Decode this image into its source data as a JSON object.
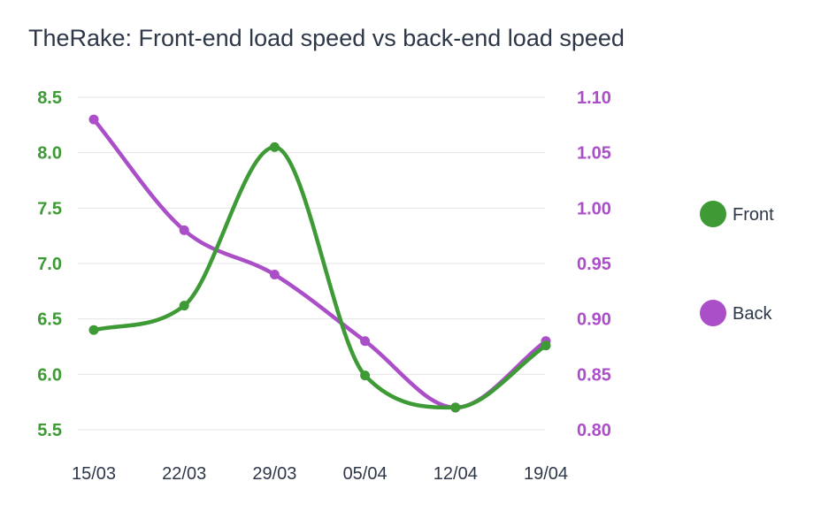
{
  "chart_data": {
    "type": "line",
    "title": "TheRake: Front-end load speed vs back-end load speed",
    "categories": [
      "15/03",
      "22/03",
      "29/03",
      "05/04",
      "12/04",
      "19/04"
    ],
    "series": [
      {
        "name": "Front",
        "axis": "left",
        "color": "#3d9a35",
        "values": [
          6.4,
          6.62,
          8.05,
          5.99,
          5.7,
          6.26
        ]
      },
      {
        "name": "Back",
        "axis": "right",
        "color": "#ab4fc9",
        "values": [
          1.08,
          0.98,
          0.94,
          0.88,
          0.82,
          0.88
        ]
      }
    ],
    "y_left": {
      "ticks": [
        "5.5",
        "6.0",
        "6.5",
        "7.0",
        "7.5",
        "8.0",
        "8.5"
      ],
      "range": [
        5.5,
        8.5
      ],
      "color": "#3d9a35"
    },
    "y_right": {
      "ticks": [
        "0.80",
        "0.85",
        "0.90",
        "0.95",
        "1.00",
        "1.05",
        "1.10"
      ],
      "range": [
        0.8,
        1.1
      ],
      "color": "#ab4fc9"
    },
    "grid": true,
    "legend_position": "right",
    "smooth": true
  }
}
